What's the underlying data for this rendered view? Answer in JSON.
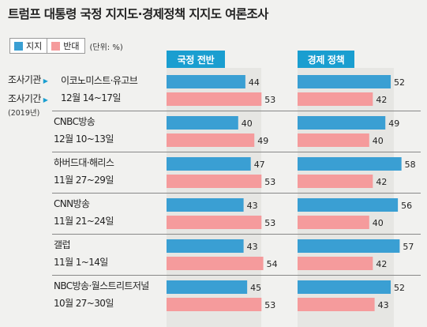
{
  "title": "트럼프 대통령 국정 지지도·경제정책 지지도 여론조사",
  "legend": {
    "support": "지지",
    "oppose": "반대",
    "unit": "(단위: %)"
  },
  "meta": {
    "institution_label": "조사기관",
    "period_label": "조사기간",
    "year": "(2019년)"
  },
  "colors": {
    "support": "#3a9fd3",
    "oppose": "#f59b9c",
    "header": "#1a9ed0"
  },
  "chart_data": {
    "type": "bar",
    "title": "트럼프 대통령 국정 지지도·경제정책 지지도 여론조사",
    "unit": "(단위: %)",
    "panels": [
      "국정 전반",
      "경제 정책"
    ],
    "series_names": [
      "지지",
      "반대"
    ],
    "xlim": [
      0,
      60
    ],
    "surveys": [
      {
        "name": "이코노미스트·유고브",
        "date": "12월 14~17일",
        "overall": [
          44,
          53
        ],
        "economy": [
          52,
          42
        ]
      },
      {
        "name": "CNBC방송",
        "date": "12월 10~13일",
        "overall": [
          40,
          49
        ],
        "economy": [
          49,
          40
        ]
      },
      {
        "name": "하버드대·해리스",
        "date": "11월 27~29일",
        "overall": [
          47,
          53
        ],
        "economy": [
          58,
          42
        ]
      },
      {
        "name": "CNN방송",
        "date": "11월 21~24일",
        "overall": [
          43,
          53
        ],
        "economy": [
          56,
          40
        ]
      },
      {
        "name": "갤럽",
        "date": "11월 1~14일",
        "overall": [
          43,
          54
        ],
        "economy": [
          57,
          42
        ]
      },
      {
        "name": "NBC방송·월스트리트저널",
        "date": "10월 27~30일",
        "overall": [
          45,
          53
        ],
        "economy": [
          52,
          43
        ]
      }
    ]
  }
}
